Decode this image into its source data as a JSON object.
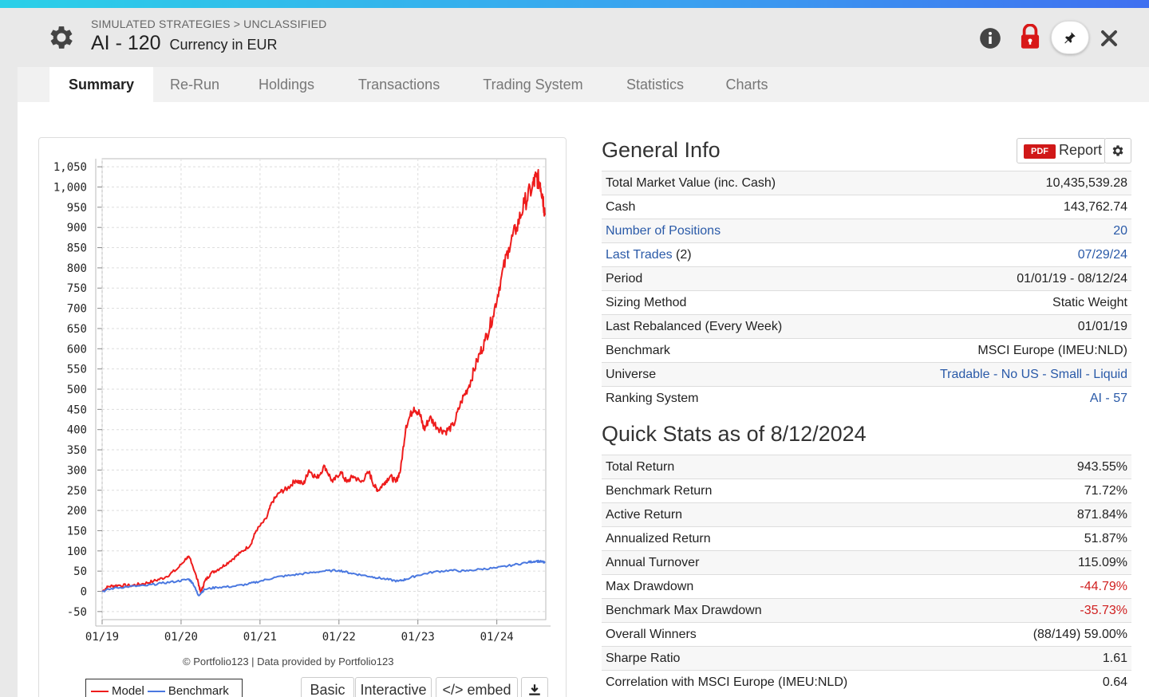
{
  "header": {
    "breadcrumb": "SIMULATED STRATEGIES > UNCLASSIFIED",
    "title": "AI - 120",
    "currency": "Currency in EUR",
    "icons": [
      "gear-icon",
      "info-icon",
      "lock-icon",
      "pin-icon",
      "close-icon"
    ]
  },
  "tabs": [
    {
      "label": "Summary",
      "active": true
    },
    {
      "label": "Re-Run"
    },
    {
      "label": "Holdings"
    },
    {
      "label": "Transactions"
    },
    {
      "label": "Trading System"
    },
    {
      "label": "Statistics"
    },
    {
      "label": "Charts"
    }
  ],
  "chart": {
    "credit": "© Portfolio123 | Data provided by Portfolio123",
    "legend": {
      "model": "Model",
      "benchmark": "Benchmark"
    },
    "buttons": {
      "basic": "Basic",
      "interactive": "Interactive",
      "embed": "</> embed"
    }
  },
  "chart_data": {
    "type": "line",
    "x_ticks": [
      "01/19",
      "01/20",
      "01/21",
      "01/22",
      "01/23",
      "01/24"
    ],
    "y_ticks": [
      "1,050",
      "1,000",
      "950",
      "900",
      "850",
      "800",
      "750",
      "700",
      "650",
      "600",
      "550",
      "500",
      "450",
      "400",
      "350",
      "300",
      "250",
      "200",
      "150",
      "100",
      "50",
      "0",
      "-50"
    ],
    "ylim": [
      -70,
      1070
    ],
    "xlim": [
      2019.0,
      2024.62
    ],
    "grid": true,
    "legend_position": "bottom-left",
    "series": [
      {
        "name": "Model",
        "color": "#ee1c1c",
        "points": [
          [
            2019.0,
            0
          ],
          [
            2019.08,
            12
          ],
          [
            2019.2,
            15
          ],
          [
            2019.35,
            14
          ],
          [
            2019.5,
            18
          ],
          [
            2019.65,
            25
          ],
          [
            2019.8,
            35
          ],
          [
            2019.95,
            55
          ],
          [
            2020.08,
            85
          ],
          [
            2020.12,
            80
          ],
          [
            2020.22,
            20
          ],
          [
            2020.25,
            -5
          ],
          [
            2020.3,
            25
          ],
          [
            2020.38,
            45
          ],
          [
            2020.5,
            58
          ],
          [
            2020.62,
            75
          ],
          [
            2020.75,
            95
          ],
          [
            2020.88,
            115
          ],
          [
            2020.95,
            150
          ],
          [
            2021.08,
            180
          ],
          [
            2021.15,
            220
          ],
          [
            2021.25,
            245
          ],
          [
            2021.35,
            255
          ],
          [
            2021.45,
            275
          ],
          [
            2021.55,
            265
          ],
          [
            2021.62,
            300
          ],
          [
            2021.72,
            280
          ],
          [
            2021.82,
            310
          ],
          [
            2021.92,
            270
          ],
          [
            2022.02,
            295
          ],
          [
            2022.1,
            270
          ],
          [
            2022.18,
            285
          ],
          [
            2022.28,
            270
          ],
          [
            2022.38,
            295
          ],
          [
            2022.45,
            260
          ],
          [
            2022.5,
            250
          ],
          [
            2022.58,
            270
          ],
          [
            2022.65,
            285
          ],
          [
            2022.72,
            270
          ],
          [
            2022.78,
            300
          ],
          [
            2022.85,
            410
          ],
          [
            2022.95,
            455
          ],
          [
            2023.02,
            440
          ],
          [
            2023.08,
            400
          ],
          [
            2023.15,
            430
          ],
          [
            2023.25,
            405
          ],
          [
            2023.35,
            395
          ],
          [
            2023.45,
            410
          ],
          [
            2023.55,
            470
          ],
          [
            2023.65,
            510
          ],
          [
            2023.75,
            570
          ],
          [
            2023.85,
            620
          ],
          [
            2023.95,
            680
          ],
          [
            2024.05,
            770
          ],
          [
            2024.15,
            850
          ],
          [
            2024.25,
            900
          ],
          [
            2024.35,
            960
          ],
          [
            2024.45,
            1000
          ],
          [
            2024.5,
            1025
          ],
          [
            2024.55,
            1010
          ],
          [
            2024.58,
            980
          ],
          [
            2024.61,
            935
          ]
        ]
      },
      {
        "name": "Benchmark",
        "color": "#4a78e0",
        "points": [
          [
            2019.0,
            0
          ],
          [
            2019.15,
            8
          ],
          [
            2019.35,
            12
          ],
          [
            2019.55,
            14
          ],
          [
            2019.75,
            20
          ],
          [
            2019.95,
            25
          ],
          [
            2020.1,
            30
          ],
          [
            2020.15,
            20
          ],
          [
            2020.22,
            -10
          ],
          [
            2020.3,
            5
          ],
          [
            2020.45,
            10
          ],
          [
            2020.65,
            12
          ],
          [
            2020.85,
            18
          ],
          [
            2021.0,
            25
          ],
          [
            2021.2,
            35
          ],
          [
            2021.4,
            40
          ],
          [
            2021.6,
            45
          ],
          [
            2021.8,
            50
          ],
          [
            2022.0,
            52
          ],
          [
            2022.15,
            45
          ],
          [
            2022.3,
            40
          ],
          [
            2022.45,
            35
          ],
          [
            2022.6,
            30
          ],
          [
            2022.75,
            25
          ],
          [
            2022.85,
            30
          ],
          [
            2023.0,
            40
          ],
          [
            2023.2,
            48
          ],
          [
            2023.4,
            52
          ],
          [
            2023.6,
            50
          ],
          [
            2023.8,
            55
          ],
          [
            2024.0,
            58
          ],
          [
            2024.2,
            65
          ],
          [
            2024.4,
            72
          ],
          [
            2024.5,
            75
          ],
          [
            2024.58,
            73
          ],
          [
            2024.61,
            70
          ]
        ]
      }
    ]
  },
  "general_info": {
    "title": "General Info",
    "report_label": "Report",
    "pdf_label": "PDF",
    "rows": [
      {
        "label": "Total Market Value (inc. Cash)",
        "value": "10,435,539.28"
      },
      {
        "label": "Cash",
        "value": "143,762.74"
      },
      {
        "label": "Number of Positions",
        "value": "20",
        "link": true
      },
      {
        "label": "Last Trades",
        "label_suffix": " (2)",
        "value": "07/29/24",
        "link": true
      },
      {
        "label": "Period",
        "value": "01/01/19 - 08/12/24"
      },
      {
        "label": "Sizing Method",
        "value": "Static Weight"
      },
      {
        "label": "Last Rebalanced (Every Week)",
        "value": "01/01/19"
      },
      {
        "label": "Benchmark",
        "value": "MSCI Europe (IMEU:NLD)"
      },
      {
        "label": "Universe",
        "value": "Tradable - No US - Small - Liquid",
        "value_link": true
      },
      {
        "label": "Ranking System",
        "value": "AI - 57",
        "value_link": true
      }
    ]
  },
  "quick_stats": {
    "title": "Quick Stats as of 8/12/2024",
    "rows": [
      {
        "label": "Total Return",
        "value": "943.55%"
      },
      {
        "label": "Benchmark Return",
        "value": "71.72%"
      },
      {
        "label": "Active Return",
        "value": "871.84%"
      },
      {
        "label": "Annualized Return",
        "value": "51.87%"
      },
      {
        "label": "Annual Turnover",
        "value": "115.09%"
      },
      {
        "label": "Max Drawdown",
        "value": "-44.79%",
        "negative": true
      },
      {
        "label": "Benchmark Max Drawdown",
        "value": "-35.73%",
        "negative": true
      },
      {
        "label": "Overall Winners",
        "value": "(88/149) 59.00%"
      },
      {
        "label": "Sharpe Ratio",
        "value": "1.61"
      },
      {
        "label": "Correlation with MSCI Europe (IMEU:NLD)",
        "value": "0.64"
      }
    ]
  }
}
